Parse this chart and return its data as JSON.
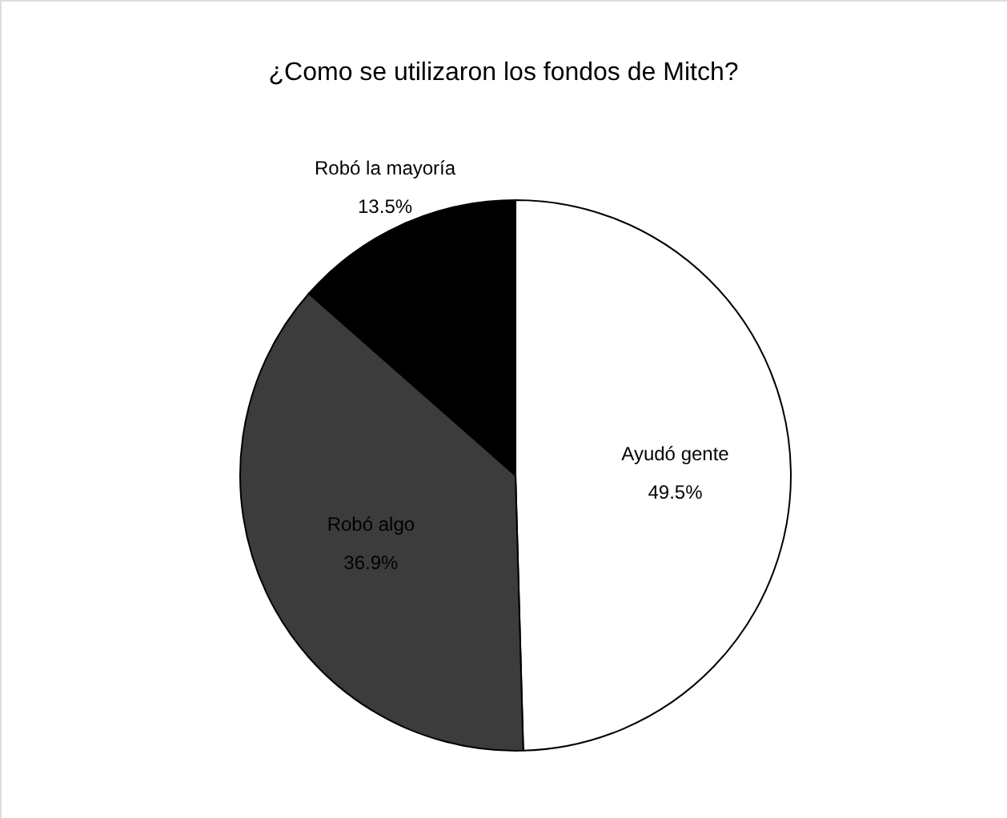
{
  "chart_data": {
    "type": "pie",
    "title": "¿Como se utilizaron los fondos de Mitch?",
    "categories": [
      "Ayudó gente",
      "Robó algo",
      "Robó la mayoría"
    ],
    "values": [
      49.5,
      36.9,
      13.5
    ],
    "colors": [
      "#ffffff",
      "#3c3c3c",
      "#000000"
    ],
    "value_labels": [
      "49.5%",
      "36.9%",
      "13.5%"
    ]
  }
}
